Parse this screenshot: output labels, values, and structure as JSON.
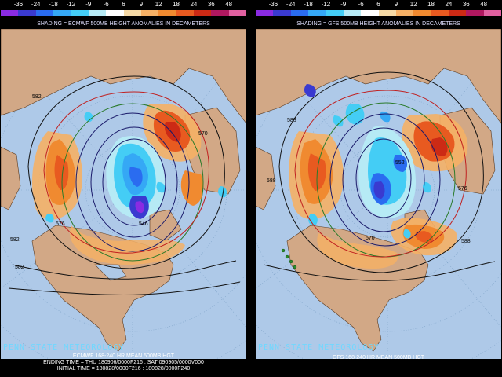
{
  "scale": {
    "labels": [
      "-36",
      "-24",
      "-18",
      "-12",
      "-9",
      "-6",
      "6",
      "9",
      "12",
      "18",
      "24",
      "36",
      "48"
    ],
    "colors": [
      "#8a2be2",
      "#3a3ad0",
      "#2a6cf0",
      "#35a8f5",
      "#44cdf5",
      "#b6eaf5",
      "#ffffff",
      "#f5d9a6",
      "#f5b065",
      "#f08a30",
      "#e85a20",
      "#cc2a15",
      "#b01860",
      "#e060a0"
    ]
  },
  "colors": {
    "ocean": "#aec9e8",
    "land": "#d2a886",
    "warm_anomaly": "#f07a2a",
    "cold_anomaly": "#2c8bd8"
  },
  "left": {
    "title": "SHADING = ECMWF 500MB HEIGHT ANOMALIES IN DECAMETERS",
    "brand": "PENN STATE METEOROLOGY",
    "caption_lines": [
      "ECMWF 168-240 HR MEAN 500MB HGT",
      "ENDING TIME = THU 180906/0000F216 : SAT 090905/0000V000",
      "INITIAL TIME = 180828/0000F216 : 180828/0000F240"
    ],
    "contour_labels": [
      "582",
      "576",
      "570",
      "546",
      "582",
      "582"
    ]
  },
  "right": {
    "title": "SHADING = GFS 500MB HEIGHT ANOMALIES IN DECAMETERS",
    "brand": "PENN STATE METEOROLOGY",
    "caption_lines": [
      "GFS 168-240 HR MEAN 500MB HGT"
    ],
    "contour_labels": [
      "588",
      "552",
      "576",
      "570",
      "588",
      "588"
    ]
  }
}
